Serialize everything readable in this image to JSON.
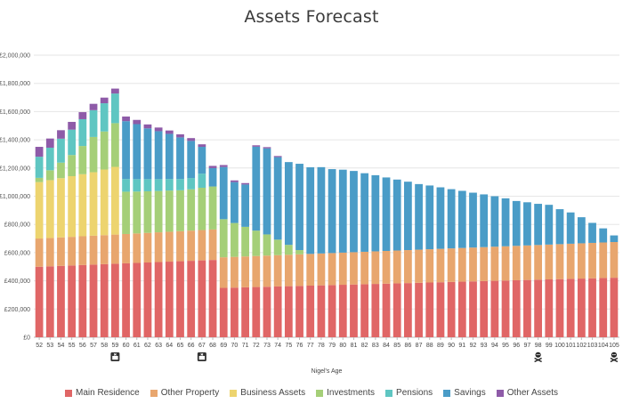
{
  "chart_data": {
    "type": "bar",
    "stacked": true,
    "title": "Assets Forecast",
    "xlabel": "Nigel's Age",
    "ylabel": "",
    "ylim": [
      0,
      2000000
    ],
    "y_ticks": [
      0,
      200000,
      400000,
      600000,
      800000,
      1000000,
      1200000,
      1400000,
      1600000,
      1800000,
      2000000
    ],
    "y_tick_labels": [
      "£0",
      "£200,000",
      "£400,000",
      "£600,000",
      "£800,000",
      "£1,000,000",
      "£1,200,000",
      "£1,400,000",
      "£1,600,000",
      "£1,800,000",
      "£2,000,000"
    ],
    "grid": true,
    "legend_position": "bottom",
    "categories": [
      "52",
      "53",
      "54",
      "55",
      "56",
      "57",
      "58",
      "59",
      "60",
      "61",
      "62",
      "63",
      "64",
      "65",
      "66",
      "67",
      "68",
      "69",
      "70",
      "71",
      "72",
      "73",
      "74",
      "75",
      "76",
      "77",
      "78",
      "79",
      "80",
      "81",
      "82",
      "83",
      "84",
      "85",
      "86",
      "87",
      "88",
      "89",
      "90",
      "91",
      "92",
      "93",
      "94",
      "95",
      "96",
      "97",
      "98",
      "99",
      "100",
      "101",
      "102",
      "103",
      "104",
      "105"
    ],
    "series": [
      {
        "name": "Main Residence",
        "color": "#e06666",
        "values": [
          500000,
          503000,
          506000,
          509000,
          512000,
          515000,
          518000,
          521000,
          524000,
          527000,
          530000,
          533000,
          536000,
          539000,
          542000,
          545000,
          548000,
          350000,
          352000,
          354000,
          356000,
          358000,
          360000,
          362000,
          364000,
          366000,
          368000,
          370000,
          372000,
          374000,
          376000,
          378000,
          380000,
          382000,
          384000,
          386000,
          388000,
          390000,
          392000,
          394000,
          396000,
          398000,
          400000,
          402000,
          404000,
          406000,
          408000,
          410000,
          412000,
          414000,
          416000,
          418000,
          420000,
          422000
        ]
      },
      {
        "name": "Other Property",
        "color": "#e8a66e",
        "values": [
          200000,
          201000,
          202000,
          203000,
          204000,
          205000,
          206000,
          207000,
          208000,
          209000,
          210000,
          211000,
          212000,
          213000,
          214000,
          215000,
          216000,
          217000,
          218000,
          219000,
          220000,
          221000,
          222000,
          223000,
          224000,
          225000,
          226000,
          227000,
          228000,
          229000,
          230000,
          231000,
          232000,
          233000,
          234000,
          235000,
          236000,
          237000,
          238000,
          239000,
          240000,
          241000,
          242000,
          243000,
          244000,
          245000,
          246000,
          247000,
          248000,
          249000,
          250000,
          251000,
          252000,
          253000
        ]
      },
      {
        "name": "Business Assets",
        "color": "#edd46f",
        "values": [
          400000,
          410000,
          420000,
          430000,
          440000,
          450000,
          465000,
          480000,
          0,
          0,
          0,
          0,
          0,
          0,
          0,
          0,
          0,
          0,
          0,
          0,
          0,
          0,
          0,
          0,
          0,
          0,
          0,
          0,
          0,
          0,
          0,
          0,
          0,
          0,
          0,
          0,
          0,
          0,
          0,
          0,
          0,
          0,
          0,
          0,
          0,
          0,
          0,
          0,
          0,
          0,
          0,
          0,
          0,
          0
        ]
      },
      {
        "name": "Investments",
        "color": "#a5cf78",
        "values": [
          30000,
          70000,
          110000,
          150000,
          200000,
          250000,
          270000,
          310000,
          300000,
          297000,
          295000,
          293000,
          292000,
          290000,
          293000,
          300000,
          305000,
          270000,
          240000,
          210000,
          180000,
          150000,
          110000,
          70000,
          30000,
          0,
          0,
          0,
          0,
          0,
          0,
          0,
          0,
          0,
          0,
          0,
          0,
          0,
          0,
          0,
          0,
          0,
          0,
          0,
          0,
          0,
          0,
          0,
          0,
          0,
          0,
          0,
          0,
          0
        ]
      },
      {
        "name": "Pensions",
        "color": "#5fc6c2",
        "values": [
          150000,
          160000,
          170000,
          180000,
          190000,
          190000,
          200000,
          210000,
          90000,
          88000,
          86000,
          84000,
          82000,
          80000,
          80000,
          100000,
          0,
          0,
          0,
          0,
          0,
          0,
          0,
          0,
          0,
          0,
          0,
          0,
          0,
          0,
          0,
          0,
          0,
          0,
          0,
          0,
          0,
          0,
          0,
          0,
          0,
          0,
          0,
          0,
          0,
          0,
          0,
          0,
          0,
          0,
          0,
          0,
          0,
          0
        ]
      },
      {
        "name": "Savings",
        "color": "#4a9cc7",
        "values": [
          0,
          0,
          0,
          0,
          0,
          0,
          0,
          0,
          410000,
          390000,
          360000,
          340000,
          320000,
          295000,
          263000,
          190000,
          130000,
          370000,
          290000,
          300000,
          595000,
          610000,
          585000,
          587000,
          612000,
          614000,
          612000,
          595000,
          588000,
          576000,
          557000,
          540000,
          521000,
          503000,
          485000,
          465000,
          452000,
          436000,
          420000,
          405000,
          389000,
          374000,
          358000,
          340000,
          318000,
          306000,
          292000,
          282000,
          248000,
          222000,
          185000,
          142000,
          100000,
          47000
        ]
      },
      {
        "name": "Other Assets",
        "color": "#8e5ba8",
        "values": [
          70000,
          65000,
          60000,
          55000,
          50000,
          45000,
          40000,
          35000,
          33000,
          30000,
          28000,
          26000,
          24000,
          22000,
          20000,
          18000,
          16000,
          14000,
          12000,
          10000,
          10000,
          9000,
          8000,
          0,
          0,
          0,
          0,
          0,
          0,
          0,
          0,
          0,
          0,
          0,
          0,
          0,
          0,
          0,
          0,
          0,
          0,
          0,
          0,
          0,
          0,
          0,
          0,
          0,
          0,
          0,
          0,
          0,
          0,
          0
        ]
      }
    ],
    "markers": [
      {
        "category": "59",
        "icon": "exit-door-icon"
      },
      {
        "category": "67",
        "icon": "exit-door-icon"
      },
      {
        "category": "98",
        "icon": "skull-crossbones-icon"
      },
      {
        "category": "105",
        "icon": "skull-crossbones-icon"
      }
    ]
  }
}
